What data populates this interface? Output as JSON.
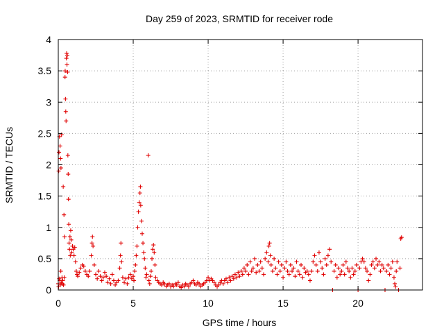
{
  "chart_data": {
    "type": "scatter",
    "title": "Day 259 of 2023, SRMTID for receiver rode",
    "xlabel": "GPS time / hours",
    "ylabel": "SRMTID / TECUs",
    "xlim": [
      0,
      24.3
    ],
    "ylim": [
      0,
      4
    ],
    "xticks": [
      0,
      5,
      10,
      15,
      20
    ],
    "xtick_labels": [
      "0",
      "5",
      "10",
      "15",
      "20"
    ],
    "yticks": [
      0,
      0.5,
      1,
      1.5,
      2,
      2.5,
      3,
      3.5,
      4
    ],
    "ytick_labels": [
      "0",
      "0.5",
      "1",
      "1.5",
      "2",
      "2.5",
      "3",
      "3.5",
      "4"
    ],
    "grid": true,
    "marker": "+",
    "color": "#e00000",
    "series": [
      {
        "name": "SRMTID",
        "points": [
          [
            0.0,
            0.1
          ],
          [
            0.02,
            0.05
          ],
          [
            0.03,
            1.9
          ],
          [
            0.05,
            2.2
          ],
          [
            0.06,
            0.18
          ],
          [
            0.08,
            2.45
          ],
          [
            0.1,
            0.15
          ],
          [
            0.12,
            2.3
          ],
          [
            0.13,
            0.08
          ],
          [
            0.15,
            2.1
          ],
          [
            0.17,
            0.3
          ],
          [
            0.18,
            1.95
          ],
          [
            0.2,
            0.12
          ],
          [
            0.22,
            2.48
          ],
          [
            0.25,
            0.2
          ],
          [
            0.28,
            0.1
          ],
          [
            0.3,
            0.15
          ],
          [
            0.33,
            1.65
          ],
          [
            0.35,
            0.08
          ],
          [
            0.38,
            1.2
          ],
          [
            0.4,
            0.2
          ],
          [
            0.42,
            0.85
          ],
          [
            0.45,
            3.4
          ],
          [
            0.46,
            3.5
          ],
          [
            0.48,
            3.05
          ],
          [
            0.5,
            2.85
          ],
          [
            0.52,
            2.7
          ],
          [
            0.54,
            3.7
          ],
          [
            0.56,
            3.78
          ],
          [
            0.58,
            3.6
          ],
          [
            0.6,
            3.75
          ],
          [
            0.62,
            3.48
          ],
          [
            0.64,
            2.15
          ],
          [
            0.66,
            1.85
          ],
          [
            0.68,
            1.45
          ],
          [
            0.7,
            1.05
          ],
          [
            0.72,
            0.75
          ],
          [
            0.75,
            0.65
          ],
          [
            0.78,
            0.85
          ],
          [
            0.8,
            0.55
          ],
          [
            0.83,
            0.95
          ],
          [
            0.86,
            0.8
          ],
          [
            0.9,
            0.6
          ],
          [
            0.95,
            0.7
          ],
          [
            1.0,
            0.65
          ],
          [
            1.05,
            0.55
          ],
          [
            1.1,
            0.68
          ],
          [
            1.15,
            0.45
          ],
          [
            1.2,
            0.3
          ],
          [
            1.25,
            0.25
          ],
          [
            1.3,
            0.22
          ],
          [
            1.4,
            0.28
          ],
          [
            1.5,
            0.35
          ],
          [
            1.6,
            0.4
          ],
          [
            1.7,
            0.38
          ],
          [
            1.8,
            0.3
          ],
          [
            1.9,
            0.25
          ],
          [
            2.0,
            0.22
          ],
          [
            2.1,
            0.3
          ],
          [
            2.2,
            0.55
          ],
          [
            2.25,
            0.75
          ],
          [
            2.28,
            0.85
          ],
          [
            2.32,
            0.7
          ],
          [
            2.4,
            0.4
          ],
          [
            2.5,
            0.25
          ],
          [
            2.6,
            0.18
          ],
          [
            2.7,
            0.3
          ],
          [
            2.8,
            0.22
          ],
          [
            2.9,
            0.15
          ],
          [
            3.0,
            0.2
          ],
          [
            3.1,
            0.28
          ],
          [
            3.2,
            0.22
          ],
          [
            3.3,
            0.12
          ],
          [
            3.4,
            0.18
          ],
          [
            3.5,
            0.1
          ],
          [
            3.6,
            0.25
          ],
          [
            3.7,
            0.15
          ],
          [
            3.8,
            0.08
          ],
          [
            3.9,
            0.12
          ],
          [
            4.0,
            0.15
          ],
          [
            4.1,
            0.35
          ],
          [
            4.15,
            0.55
          ],
          [
            4.18,
            0.75
          ],
          [
            4.22,
            0.45
          ],
          [
            4.3,
            0.2
          ],
          [
            4.4,
            0.12
          ],
          [
            4.5,
            0.18
          ],
          [
            4.6,
            0.1
          ],
          [
            4.7,
            0.2
          ],
          [
            4.8,
            0.25
          ],
          [
            4.9,
            0.18
          ],
          [
            5.0,
            0.22
          ],
          [
            5.05,
            0.15
          ],
          [
            5.1,
            0.3
          ],
          [
            5.15,
            0.4
          ],
          [
            5.2,
            0.55
          ],
          [
            5.25,
            0.7
          ],
          [
            5.3,
            1.0
          ],
          [
            5.35,
            1.25
          ],
          [
            5.4,
            1.4
          ],
          [
            5.45,
            1.55
          ],
          [
            5.48,
            1.65
          ],
          [
            5.5,
            1.35
          ],
          [
            5.55,
            1.1
          ],
          [
            5.6,
            0.9
          ],
          [
            5.65,
            0.75
          ],
          [
            5.7,
            0.6
          ],
          [
            5.75,
            0.5
          ],
          [
            5.8,
            0.35
          ],
          [
            5.85,
            0.2
          ],
          [
            5.9,
            0.25
          ],
          [
            6.0,
            2.15
          ],
          [
            6.05,
            0.15
          ],
          [
            6.1,
            0.1
          ],
          [
            6.15,
            0.22
          ],
          [
            6.2,
            0.3
          ],
          [
            6.25,
            0.5
          ],
          [
            6.3,
            0.65
          ],
          [
            6.35,
            0.72
          ],
          [
            6.4,
            0.6
          ],
          [
            6.45,
            0.4
          ],
          [
            6.5,
            0.2
          ],
          [
            6.6,
            0.15
          ],
          [
            6.7,
            0.12
          ],
          [
            6.8,
            0.1
          ],
          [
            6.9,
            0.08
          ],
          [
            7.0,
            0.12
          ],
          [
            7.1,
            0.1
          ],
          [
            7.2,
            0.06
          ],
          [
            7.3,
            0.08
          ],
          [
            7.4,
            0.1
          ],
          [
            7.5,
            0.05
          ],
          [
            7.6,
            0.08
          ],
          [
            7.7,
            0.06
          ],
          [
            7.8,
            0.1
          ],
          [
            7.9,
            0.08
          ],
          [
            8.0,
            0.12
          ],
          [
            8.1,
            0.06
          ],
          [
            8.2,
            0.04
          ],
          [
            8.3,
            0.08
          ],
          [
            8.4,
            0.06
          ],
          [
            8.5,
            0.1
          ],
          [
            8.6,
            0.08
          ],
          [
            8.7,
            0.05
          ],
          [
            8.8,
            0.1
          ],
          [
            8.9,
            0.12
          ],
          [
            9.0,
            0.15
          ],
          [
            9.1,
            0.1
          ],
          [
            9.2,
            0.08
          ],
          [
            9.3,
            0.12
          ],
          [
            9.4,
            0.1
          ],
          [
            9.5,
            0.06
          ],
          [
            9.6,
            0.08
          ],
          [
            9.7,
            0.1
          ],
          [
            9.8,
            0.12
          ],
          [
            9.9,
            0.15
          ],
          [
            10.0,
            0.2
          ],
          [
            10.1,
            0.15
          ],
          [
            10.2,
            0.18
          ],
          [
            10.3,
            0.15
          ],
          [
            10.4,
            0.12
          ],
          [
            10.5,
            0.08
          ],
          [
            10.6,
            0.05
          ],
          [
            10.7,
            0.08
          ],
          [
            10.8,
            0.12
          ],
          [
            10.9,
            0.15
          ],
          [
            11.0,
            0.1
          ],
          [
            11.1,
            0.15
          ],
          [
            11.2,
            0.18
          ],
          [
            11.3,
            0.12
          ],
          [
            11.4,
            0.2
          ],
          [
            11.5,
            0.15
          ],
          [
            11.6,
            0.22
          ],
          [
            11.7,
            0.18
          ],
          [
            11.8,
            0.25
          ],
          [
            11.9,
            0.2
          ],
          [
            12.0,
            0.28
          ],
          [
            12.1,
            0.22
          ],
          [
            12.2,
            0.3
          ],
          [
            12.3,
            0.25
          ],
          [
            12.4,
            0.35
          ],
          [
            12.5,
            0.3
          ],
          [
            12.6,
            0.4
          ],
          [
            12.7,
            0.25
          ],
          [
            12.8,
            0.45
          ],
          [
            12.9,
            0.3
          ],
          [
            13.0,
            0.35
          ],
          [
            13.1,
            0.5
          ],
          [
            13.2,
            0.28
          ],
          [
            13.3,
            0.4
          ],
          [
            13.4,
            0.3
          ],
          [
            13.5,
            0.45
          ],
          [
            13.6,
            0.35
          ],
          [
            13.7,
            0.25
          ],
          [
            13.8,
            0.5
          ],
          [
            13.9,
            0.6
          ],
          [
            14.0,
            0.45
          ],
          [
            14.05,
            0.7
          ],
          [
            14.1,
            0.75
          ],
          [
            14.15,
            0.55
          ],
          [
            14.2,
            0.4
          ],
          [
            14.3,
            0.3
          ],
          [
            14.4,
            0.5
          ],
          [
            14.5,
            0.35
          ],
          [
            14.6,
            0.25
          ],
          [
            14.7,
            0.45
          ],
          [
            14.8,
            0.3
          ],
          [
            14.9,
            0.4
          ],
          [
            15.0,
            0.2
          ],
          [
            15.1,
            0.35
          ],
          [
            15.2,
            0.45
          ],
          [
            15.3,
            0.3
          ],
          [
            15.4,
            0.25
          ],
          [
            15.5,
            0.4
          ],
          [
            15.6,
            0.3
          ],
          [
            15.7,
            0.35
          ],
          [
            15.8,
            0.22
          ],
          [
            15.9,
            0.45
          ],
          [
            16.0,
            0.3
          ],
          [
            16.1,
            0.25
          ],
          [
            16.2,
            0.4
          ],
          [
            16.3,
            0.2
          ],
          [
            16.4,
            0.35
          ],
          [
            16.5,
            0.28
          ],
          [
            16.6,
            0.3
          ],
          [
            16.7,
            0.25
          ],
          [
            16.8,
            0.15
          ],
          [
            16.9,
            0.3
          ],
          [
            17.0,
            0.45
          ],
          [
            17.1,
            0.55
          ],
          [
            17.2,
            0.4
          ],
          [
            17.3,
            0.3
          ],
          [
            17.4,
            0.6
          ],
          [
            17.5,
            0.45
          ],
          [
            17.6,
            0.35
          ],
          [
            17.7,
            0.25
          ],
          [
            17.8,
            0.5
          ],
          [
            17.9,
            0.4
          ],
          [
            18.0,
            0.55
          ],
          [
            18.1,
            0.65
          ],
          [
            18.2,
            0.45
          ],
          [
            18.3,
            0.0
          ],
          [
            18.4,
            0.3
          ],
          [
            18.5,
            0.4
          ],
          [
            18.6,
            0.2
          ],
          [
            18.7,
            0.35
          ],
          [
            18.8,
            0.25
          ],
          [
            18.9,
            0.3
          ],
          [
            19.0,
            0.4
          ],
          [
            19.1,
            0.25
          ],
          [
            19.2,
            0.45
          ],
          [
            19.3,
            0.35
          ],
          [
            19.4,
            0.3
          ],
          [
            19.5,
            0.2
          ],
          [
            19.6,
            0.35
          ],
          [
            19.7,
            0.25
          ],
          [
            19.8,
            0.3
          ],
          [
            19.9,
            0.4
          ],
          [
            20.0,
            0.0
          ],
          [
            20.1,
            0.35
          ],
          [
            20.2,
            0.45
          ],
          [
            20.3,
            0.5
          ],
          [
            20.4,
            0.45
          ],
          [
            20.5,
            0.35
          ],
          [
            20.6,
            0.3
          ],
          [
            20.7,
            0.15
          ],
          [
            20.8,
            0.25
          ],
          [
            20.9,
            0.4
          ],
          [
            21.0,
            0.45
          ],
          [
            21.1,
            0.35
          ],
          [
            21.2,
            0.5
          ],
          [
            21.3,
            0.4
          ],
          [
            21.4,
            0.45
          ],
          [
            21.5,
            0.3
          ],
          [
            21.6,
            0.4
          ],
          [
            21.7,
            0.35
          ],
          [
            21.8,
            0.0
          ],
          [
            21.9,
            0.3
          ],
          [
            22.0,
            0.4
          ],
          [
            22.1,
            0.25
          ],
          [
            22.2,
            0.35
          ],
          [
            22.3,
            0.45
          ],
          [
            22.4,
            0.2
          ],
          [
            22.45,
            0.1
          ],
          [
            22.5,
            0.05
          ],
          [
            22.55,
            0.3
          ],
          [
            22.6,
            0.45
          ],
          [
            22.7,
            0.0
          ],
          [
            22.8,
            0.35
          ],
          [
            22.85,
            0.82
          ],
          [
            22.9,
            0.84
          ]
        ]
      }
    ]
  }
}
